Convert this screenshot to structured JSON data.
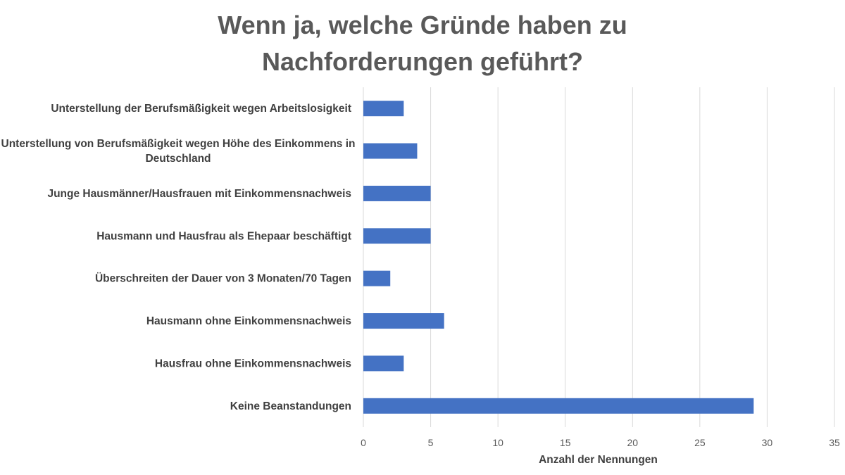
{
  "chart_data": {
    "type": "bar",
    "orientation": "horizontal",
    "title_lines": [
      "Wenn ja, welche Gründe haben zu",
      "Nachforderungen geführt?"
    ],
    "categories": [
      [
        "Unterstellung der Berufsmäßigkeit wegen Arbeitslosigkeit"
      ],
      [
        "Unterstellung von Berufsmäßigkeit wegen Höhe des Einkommens in",
        "Deutschland"
      ],
      [
        "Junge Hausmänner/Hausfrauen mit Einkommensnachweis"
      ],
      [
        "Hausmann und Hausfrau als Ehepaar beschäftigt"
      ],
      [
        "Überschreiten der Dauer von 3 Monaten/70 Tagen"
      ],
      [
        "Hausmann ohne Einkommensnachweis"
      ],
      [
        "Hausfrau ohne Einkommensnachweis"
      ],
      [
        "Keine Beanstandungen"
      ]
    ],
    "values": [
      3,
      4,
      5,
      5,
      2,
      6,
      3,
      29
    ],
    "xlabel": "Anzahl der Nennungen",
    "ylabel": "",
    "xlim": [
      0,
      35
    ],
    "xticks": [
      0,
      5,
      10,
      15,
      20,
      25,
      30,
      35
    ],
    "grid": true,
    "legend": "none",
    "colors": {
      "bar": "#4472c4",
      "grid": "#d9d9d9",
      "title": "#595959",
      "text": "#404040"
    }
  }
}
